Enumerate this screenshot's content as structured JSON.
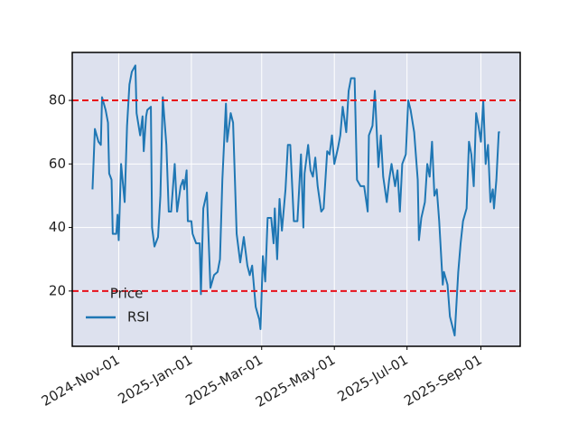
{
  "chart_data": {
    "type": "line",
    "x": [
      "2024-10-10",
      "2024-10-12",
      "2024-10-15",
      "2024-10-17",
      "2024-10-18",
      "2024-10-21",
      "2024-10-23",
      "2024-10-24",
      "2024-10-26",
      "2024-10-27",
      "2024-10-30",
      "2024-10-31",
      "2024-11-01",
      "2024-11-03",
      "2024-11-06",
      "2024-11-08",
      "2024-11-10",
      "2024-11-12",
      "2024-11-15",
      "2024-11-16",
      "2024-11-19",
      "2024-11-21",
      "2024-11-22",
      "2024-11-24",
      "2024-11-25",
      "2024-11-28",
      "2024-11-29",
      "2024-12-01",
      "2024-12-04",
      "2024-12-06",
      "2024-12-08",
      "2024-12-11",
      "2024-12-13",
      "2024-12-15",
      "2024-12-18",
      "2024-12-20",
      "2024-12-23",
      "2024-12-25",
      "2024-12-26",
      "2024-12-28",
      "2024-12-29",
      "2025-01-01",
      "2025-01-02",
      "2025-01-05",
      "2025-01-08",
      "2025-01-09",
      "2025-01-11",
      "2025-01-14",
      "2025-01-17",
      "2025-01-20",
      "2025-01-23",
      "2025-01-25",
      "2025-01-27",
      "2025-01-30",
      "2025-01-31",
      "2025-02-03",
      "2025-02-05",
      "2025-02-08",
      "2025-02-11",
      "2025-02-14",
      "2025-02-17",
      "2025-02-19",
      "2025-02-21",
      "2025-02-24",
      "2025-02-27",
      "2025-02-28",
      "2025-03-02",
      "2025-03-04",
      "2025-03-06",
      "2025-03-09",
      "2025-03-11",
      "2025-03-12",
      "2025-03-14",
      "2025-03-16",
      "2025-03-18",
      "2025-03-21",
      "2025-03-23",
      "2025-03-25",
      "2025-03-28",
      "2025-03-31",
      "2025-04-03",
      "2025-04-05",
      "2025-04-06",
      "2025-04-09",
      "2025-04-11",
      "2025-04-13",
      "2025-04-15",
      "2025-04-17",
      "2025-04-20",
      "2025-04-22",
      "2025-04-25",
      "2025-04-27",
      "2025-04-29",
      "2025-05-01",
      "2025-05-04",
      "2025-05-06",
      "2025-05-08",
      "2025-05-11",
      "2025-05-13",
      "2025-05-15",
      "2025-05-18",
      "2025-05-20",
      "2025-05-23",
      "2025-05-26",
      "2025-05-29",
      "2025-05-30",
      "2025-06-02",
      "2025-06-04",
      "2025-06-07",
      "2025-06-09",
      "2025-06-11",
      "2025-06-14",
      "2025-06-16",
      "2025-06-18",
      "2025-06-21",
      "2025-06-23",
      "2025-06-25",
      "2025-06-27",
      "2025-06-30",
      "2025-07-02",
      "2025-07-04",
      "2025-07-07",
      "2025-07-10",
      "2025-07-11",
      "2025-07-13",
      "2025-07-16",
      "2025-07-18",
      "2025-07-20",
      "2025-07-22",
      "2025-07-24",
      "2025-07-26",
      "2025-07-28",
      "2025-07-31",
      "2025-08-01",
      "2025-08-04",
      "2025-08-06",
      "2025-08-08",
      "2025-08-10",
      "2025-08-13",
      "2025-08-15",
      "2025-08-17",
      "2025-08-20",
      "2025-08-22",
      "2025-08-24",
      "2025-08-26",
      "2025-08-28",
      "2025-08-30",
      "2025-09-01",
      "2025-09-03",
      "2025-09-05",
      "2025-09-07",
      "2025-09-09",
      "2025-09-11",
      "2025-09-12",
      "2025-09-14",
      "2025-09-16",
      "2025-09-17"
    ],
    "series": [
      {
        "name": "RSI",
        "color": "#1f77b4",
        "values": [
          52,
          71,
          67,
          66,
          81,
          77,
          73,
          57,
          55,
          38,
          38,
          44,
          36,
          60,
          48,
          72,
          85,
          89,
          91,
          76,
          69,
          75,
          64,
          75,
          77,
          78,
          40,
          34,
          37,
          50,
          81,
          66,
          45,
          45,
          60,
          45,
          53,
          55,
          52,
          58,
          42,
          42,
          38,
          35,
          35,
          19,
          46,
          51,
          21,
          25,
          26,
          30,
          55,
          79,
          67,
          76,
          73,
          38,
          29,
          37,
          28,
          25,
          28,
          15,
          11,
          8,
          31,
          23,
          43,
          43,
          35,
          46,
          30,
          49,
          39,
          52,
          66,
          66,
          42,
          42,
          63,
          40,
          57,
          66,
          58,
          56,
          62,
          53,
          45,
          46,
          64,
          63,
          69,
          60,
          65,
          69,
          78,
          70,
          83,
          87,
          87,
          55,
          53,
          53,
          45,
          69,
          72,
          83,
          59,
          69,
          56,
          48,
          55,
          60,
          53,
          58,
          45,
          60,
          63,
          80,
          77,
          70,
          55,
          36,
          43,
          48,
          60,
          56,
          67,
          50,
          52,
          42,
          22,
          26,
          22,
          12,
          9,
          6,
          26,
          35,
          42,
          46,
          67,
          63,
          53,
          76,
          72,
          67,
          80,
          60,
          66,
          48,
          52,
          46,
          55,
          70,
          70
        ]
      }
    ],
    "legend_title": "Price",
    "legend": "lower left",
    "xlim": [
      "2024-09-23",
      "2025-10-04"
    ],
    "xticks": [
      {
        "value": "2024-11-01",
        "label": "2024-Nov-01"
      },
      {
        "value": "2025-01-01",
        "label": "2025-Jan-01"
      },
      {
        "value": "2025-03-01",
        "label": "2025-Mar-01"
      },
      {
        "value": "2025-05-01",
        "label": "2025-May-01"
      },
      {
        "value": "2025-07-01",
        "label": "2025-Jul-01"
      },
      {
        "value": "2025-09-01",
        "label": "2025-Sep-01"
      }
    ],
    "ylim": [
      2.6,
      95.1
    ],
    "yticks": [
      20,
      40,
      60,
      80
    ],
    "reference_lines": [
      20,
      80
    ],
    "reference_color": "#e8101a",
    "grid": true
  }
}
